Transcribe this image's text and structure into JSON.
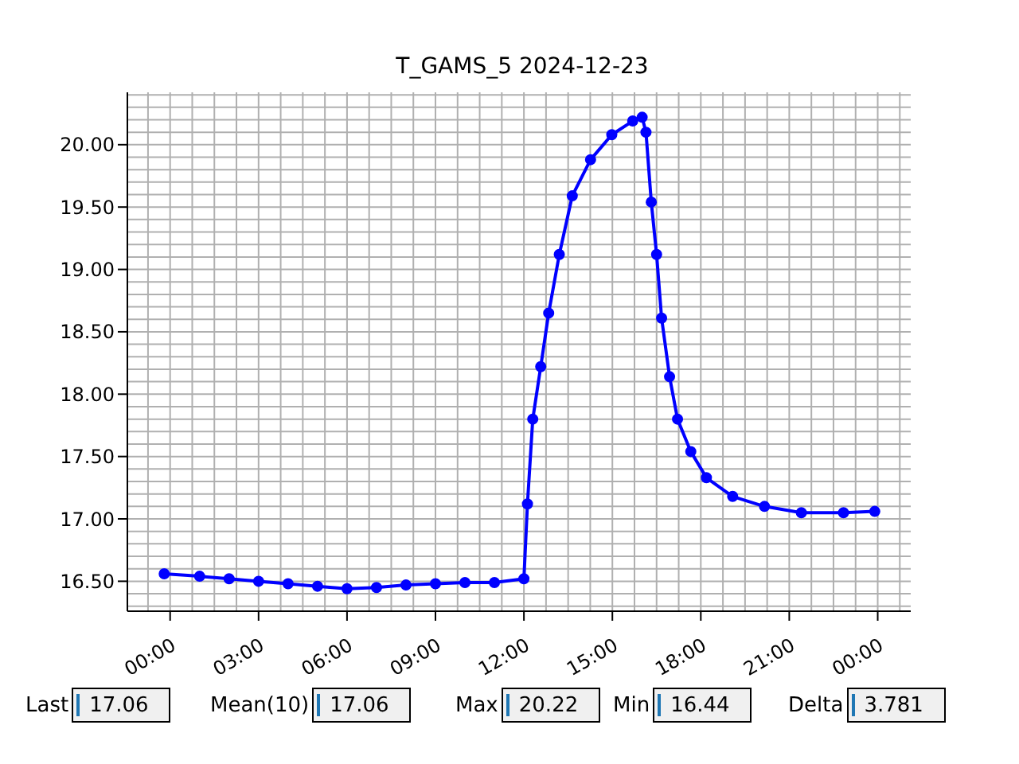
{
  "chart_data": {
    "type": "line",
    "title": "T_GAMS_5 2024-12-23",
    "x": [
      -0.2,
      1,
      2,
      3,
      4,
      5,
      6,
      7,
      8,
      9,
      10,
      11,
      12,
      12.12,
      12.3,
      12.57,
      12.84,
      13.2,
      13.64,
      14.26,
      14.98,
      15.69,
      16.01,
      16.14,
      16.32,
      16.5,
      16.67,
      16.94,
      17.21,
      17.66,
      18.19,
      19.08,
      20.16,
      21.41,
      22.84,
      23.9
    ],
    "series": [
      {
        "color": "#0000ff",
        "values": [
          16.56,
          16.54,
          16.52,
          16.5,
          16.48,
          16.46,
          16.44,
          16.45,
          16.47,
          16.48,
          16.49,
          16.49,
          16.52,
          17.12,
          17.8,
          18.22,
          18.65,
          19.12,
          19.59,
          19.88,
          20.08,
          20.19,
          20.22,
          20.1,
          19.54,
          19.12,
          18.61,
          18.14,
          17.8,
          17.54,
          17.33,
          17.18,
          17.1,
          17.05,
          17.05,
          17.06
        ]
      }
    ],
    "xlim": [
      -1.45,
      25.12
    ],
    "xticks": [
      {
        "value": 0,
        "label": "00:00"
      },
      {
        "value": 3,
        "label": "03:00"
      },
      {
        "value": 6,
        "label": "06:00"
      },
      {
        "value": 9,
        "label": "09:00"
      },
      {
        "value": 12,
        "label": "12:00"
      },
      {
        "value": 15,
        "label": "15:00"
      },
      {
        "value": 18,
        "label": "18:00"
      },
      {
        "value": 21,
        "label": "21:00"
      },
      {
        "value": 24,
        "label": "00:00"
      }
    ],
    "ylim": [
      16.26,
      20.42
    ],
    "yticks": [
      {
        "value": 16.5,
        "label": "16.50"
      },
      {
        "value": 17,
        "label": "17.00"
      },
      {
        "value": 17.5,
        "label": "17.50"
      },
      {
        "value": 18,
        "label": "18.00"
      },
      {
        "value": 18.5,
        "label": "18.50"
      },
      {
        "value": 19,
        "label": "19.00"
      },
      {
        "value": 19.5,
        "label": "19.50"
      },
      {
        "value": 20,
        "label": "20.00"
      }
    ],
    "grid": true,
    "marker": "circle",
    "line_style": "solid",
    "legend": false,
    "annotations": [
      "Last",
      "17.06",
      "Mean(10)",
      "17.06",
      "Max",
      "20.22",
      "Min",
      "16.44",
      "Delta",
      "3.781"
    ]
  }
}
